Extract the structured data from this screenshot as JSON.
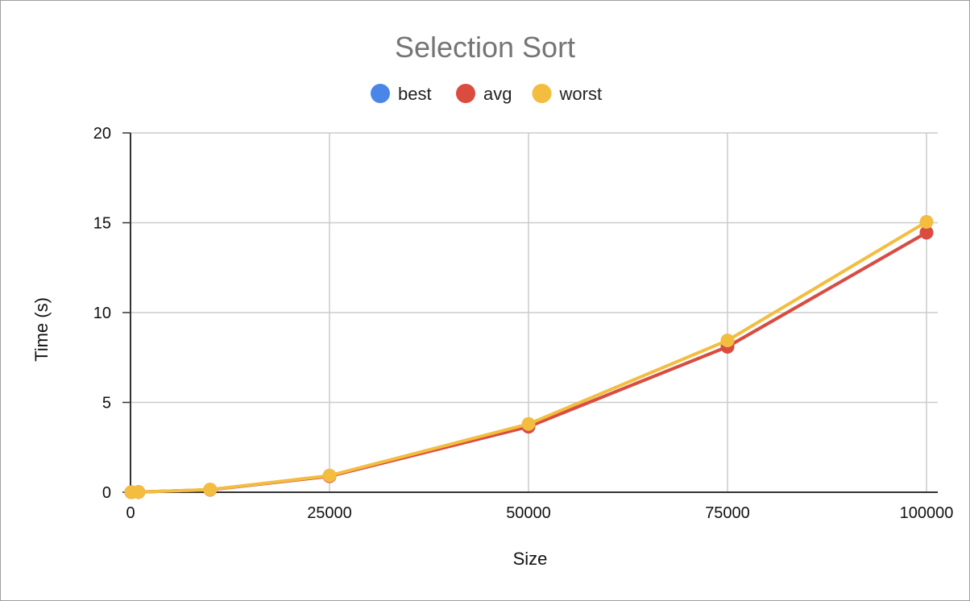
{
  "chart_data": {
    "type": "line",
    "title": "Selection Sort",
    "xlabel": "Size",
    "ylabel": "Time (s)",
    "xlim": [
      0,
      100000
    ],
    "ylim": [
      0,
      20
    ],
    "x_ticks": [
      0,
      25000,
      50000,
      75000,
      100000
    ],
    "y_ticks": [
      0,
      5,
      10,
      15,
      20
    ],
    "grid": true,
    "legend_position": "top",
    "x": [
      100,
      1000,
      10000,
      25000,
      50000,
      75000,
      100000
    ],
    "series": [
      {
        "name": "best",
        "color": "#4a86e8",
        "values": [
          0.0,
          0.01,
          0.14,
          0.9,
          3.65,
          8.1,
          14.45
        ]
      },
      {
        "name": "avg",
        "color": "#db4c3f",
        "values": [
          0.0,
          0.01,
          0.14,
          0.89,
          3.65,
          8.1,
          14.45
        ]
      },
      {
        "name": "worst",
        "color": "#f3bd40",
        "values": [
          0.0,
          0.01,
          0.15,
          0.93,
          3.8,
          8.45,
          15.05
        ]
      }
    ]
  }
}
